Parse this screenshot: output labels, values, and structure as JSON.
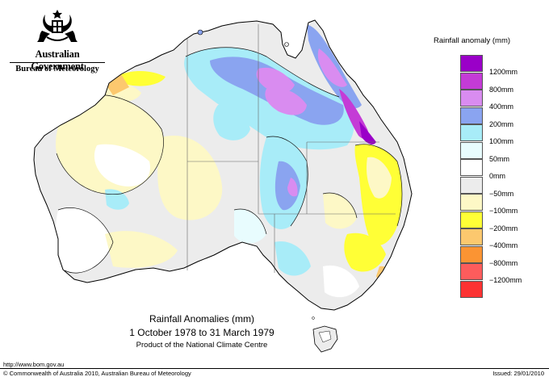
{
  "header": {
    "government": "Australian Government",
    "agency": "Bureau of Meteorology"
  },
  "legend": {
    "title": "Rainfall anomaly (mm)",
    "items": [
      {
        "label": "1200mm",
        "color": "#9a00c8"
      },
      {
        "label": "800mm",
        "color": "#c43bd6"
      },
      {
        "label": "400mm",
        "color": "#d98cf0"
      },
      {
        "label": "200mm",
        "color": "#8aa4f0"
      },
      {
        "label": "100mm",
        "color": "#a8ecf8"
      },
      {
        "label": "50mm",
        "color": "#e8fcfe"
      },
      {
        "label": "0mm",
        "color": "#ffffff"
      },
      {
        "label": "−50mm",
        "color": "#ececec"
      },
      {
        "label": "−100mm",
        "color": "#fdf8c6"
      },
      {
        "label": "−200mm",
        "color": "#ffff36"
      },
      {
        "label": "−400mm",
        "color": "#fcc86e"
      },
      {
        "label": "−800mm",
        "color": "#fb9433"
      },
      {
        "label": "−1200mm",
        "color": "#fd5c5c"
      },
      {
        "label": "",
        "color": "#fc3232"
      }
    ]
  },
  "map_title": {
    "line1": "Rainfall Anomalies (mm)",
    "line2": "1 October 1978 to 31 March 1979",
    "line3": "Product of the National Climate Centre"
  },
  "footer": {
    "url": "http://www.bom.gov.au",
    "copyright": "© Commonwealth of Australia 2010, Australian Bureau of Meteorology",
    "issued": "Issued: 29/01/2010"
  },
  "map_colors": {
    "land_base": "#ececec",
    "dry_light": "#fdf8c6",
    "dry": "#ffff36",
    "dry_orange": "#fcc86e",
    "wet_50": "#e8fcfe",
    "wet_100": "#a8ecf8",
    "wet_200": "#8aa4f0",
    "wet_400": "#d98cf0",
    "wet_800": "#c43bd6",
    "wet_1200": "#9a00c8"
  }
}
